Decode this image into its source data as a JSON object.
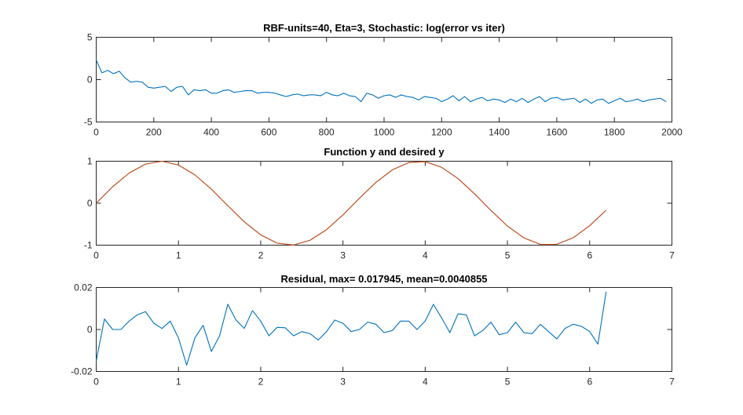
{
  "colors": {
    "blue": "#0072BD",
    "orange": "#D95319",
    "axis": "#262626",
    "background": "#ffffff"
  },
  "chart_data": [
    {
      "type": "line",
      "title": "RBF-units=40, Eta=3, Stochastic: log(error vs iter)",
      "xlabel": "",
      "ylabel": "",
      "xlim": [
        0,
        2000
      ],
      "ylim": [
        -5,
        5
      ],
      "xticks": [
        0,
        200,
        400,
        600,
        800,
        1000,
        1200,
        1400,
        1600,
        1800,
        2000
      ],
      "yticks": [
        -5,
        0,
        5
      ],
      "series": [
        {
          "color": "#0072BD",
          "x": [
            0,
            20,
            40,
            60,
            80,
            100,
            120,
            140,
            160,
            180,
            200,
            220,
            240,
            260,
            280,
            300,
            320,
            340,
            360,
            380,
            400,
            420,
            440,
            460,
            480,
            500,
            520,
            540,
            560,
            580,
            600,
            620,
            640,
            660,
            680,
            700,
            720,
            740,
            760,
            780,
            800,
            820,
            840,
            860,
            880,
            900,
            920,
            940,
            960,
            980,
            1000,
            1020,
            1040,
            1060,
            1080,
            1100,
            1120,
            1140,
            1160,
            1180,
            1200,
            1220,
            1240,
            1260,
            1280,
            1300,
            1320,
            1340,
            1360,
            1380,
            1400,
            1420,
            1440,
            1460,
            1480,
            1500,
            1520,
            1540,
            1560,
            1580,
            1600,
            1620,
            1640,
            1660,
            1680,
            1700,
            1720,
            1740,
            1760,
            1780,
            1800,
            1820,
            1840,
            1860,
            1880,
            1900,
            1920,
            1940,
            1960,
            1980
          ],
          "y": [
            2.3,
            0.8,
            1.1,
            0.7,
            1.0,
            0.2,
            -0.3,
            -0.2,
            -0.3,
            -0.9,
            -1.0,
            -0.9,
            -0.8,
            -1.4,
            -0.9,
            -0.8,
            -1.8,
            -1.2,
            -1.3,
            -1.2,
            -1.6,
            -1.6,
            -1.3,
            -1.2,
            -1.5,
            -1.4,
            -1.3,
            -1.3,
            -1.6,
            -1.5,
            -1.5,
            -1.6,
            -1.8,
            -2.0,
            -1.8,
            -1.7,
            -1.9,
            -1.8,
            -1.8,
            -1.9,
            -1.5,
            -1.8,
            -1.9,
            -1.6,
            -1.9,
            -2.0,
            -2.6,
            -1.6,
            -1.8,
            -2.2,
            -1.9,
            -1.8,
            -2.1,
            -1.8,
            -2.0,
            -2.1,
            -2.4,
            -2.0,
            -2.1,
            -2.2,
            -2.6,
            -2.3,
            -1.9,
            -2.5,
            -2.0,
            -2.6,
            -2.3,
            -2.1,
            -2.5,
            -2.3,
            -2.4,
            -2.7,
            -2.3,
            -2.6,
            -2.2,
            -2.7,
            -2.3,
            -2.0,
            -2.6,
            -2.2,
            -2.1,
            -2.4,
            -2.3,
            -2.2,
            -2.7,
            -2.3,
            -2.8,
            -2.4,
            -2.3,
            -2.8,
            -2.5,
            -2.2,
            -2.6,
            -2.5,
            -2.3,
            -2.6,
            -2.4,
            -2.3,
            -2.2,
            -2.6
          ]
        }
      ]
    },
    {
      "type": "line",
      "title": "Function y and desired y",
      "xlabel": "",
      "ylabel": "",
      "xlim": [
        0,
        7
      ],
      "ylim": [
        -1,
        1
      ],
      "xticks": [
        0,
        1,
        2,
        3,
        4,
        5,
        6,
        7
      ],
      "yticks": [
        -1,
        0,
        1
      ],
      "series": [
        {
          "color": "#0072BD",
          "x": [
            0,
            0.2,
            0.4,
            0.6,
            0.8,
            1.0,
            1.2,
            1.4,
            1.6,
            1.8,
            2.0,
            2.2,
            2.4,
            2.6,
            2.8,
            3.0,
            3.2,
            3.4,
            3.6,
            3.8,
            4.0,
            4.2,
            4.4,
            4.6,
            4.8,
            5.0,
            5.2,
            5.4,
            5.6,
            5.8,
            6.0,
            6.2
          ],
          "y": [
            0.0,
            0.3946,
            0.7174,
            0.932,
            0.9996,
            0.9093,
            0.6755,
            0.335,
            -0.0584,
            -0.4425,
            -0.7568,
            -0.9516,
            -0.9962,
            -0.8835,
            -0.6313,
            -0.2794,
            0.1165,
            0.4941,
            0.7937,
            0.9679,
            0.9894,
            0.8546,
            0.5849,
            0.2229,
            -0.1743,
            -0.544,
            -0.8278,
            -0.9817,
            -0.9792,
            -0.8228,
            -0.5366,
            -0.1665
          ]
        },
        {
          "color": "#D95319",
          "x": [
            0,
            0.2,
            0.4,
            0.6,
            0.8,
            1.0,
            1.2,
            1.4,
            1.6,
            1.8,
            2.0,
            2.2,
            2.4,
            2.6,
            2.8,
            3.0,
            3.2,
            3.4,
            3.6,
            3.8,
            4.0,
            4.2,
            4.4,
            4.6,
            4.8,
            5.0,
            5.2,
            5.4,
            5.6,
            5.8,
            6.0,
            6.2
          ],
          "y": [
            0.0,
            0.3894,
            0.7174,
            0.932,
            0.9996,
            0.9093,
            0.6755,
            0.335,
            -0.0584,
            -0.4425,
            -0.7568,
            -0.9516,
            -0.9962,
            -0.8835,
            -0.6313,
            -0.2794,
            0.1165,
            0.4941,
            0.7937,
            0.9679,
            0.9894,
            0.8546,
            0.5849,
            0.2229,
            -0.1743,
            -0.544,
            -0.8278,
            -0.9817,
            -0.9792,
            -0.8228,
            -0.5366,
            -0.1665
          ]
        }
      ]
    },
    {
      "type": "line",
      "title": "Residual, max= 0.017945, mean=0.0040855",
      "xlabel": "",
      "ylabel": "",
      "xlim": [
        0,
        7
      ],
      "ylim": [
        -0.02,
        0.02
      ],
      "xticks": [
        0,
        1,
        2,
        3,
        4,
        5,
        6,
        7
      ],
      "yticks": [
        -0.02,
        0,
        0.02
      ],
      "series": [
        {
          "color": "#0072BD",
          "x": [
            0,
            0.1,
            0.2,
            0.3,
            0.4,
            0.5,
            0.6,
            0.7,
            0.8,
            0.9,
            1.0,
            1.1,
            1.2,
            1.3,
            1.4,
            1.5,
            1.6,
            1.7,
            1.8,
            1.9,
            2.0,
            2.1,
            2.2,
            2.3,
            2.4,
            2.5,
            2.6,
            2.7,
            2.8,
            2.9,
            3.0,
            3.1,
            3.2,
            3.3,
            3.4,
            3.5,
            3.6,
            3.7,
            3.8,
            3.9,
            4.0,
            4.1,
            4.2,
            4.3,
            4.4,
            4.5,
            4.6,
            4.7,
            4.8,
            4.9,
            5.0,
            5.1,
            5.2,
            5.3,
            5.4,
            5.5,
            5.6,
            5.7,
            5.8,
            5.9,
            6.0,
            6.1,
            6.2
          ],
          "y": [
            -0.015,
            0.005,
            0.0,
            0.0,
            0.004,
            0.007,
            0.0085,
            0.003,
            0.0005,
            0.004,
            -0.004,
            -0.017,
            -0.004,
            0.002,
            -0.0105,
            -0.003,
            0.012,
            0.0045,
            0.0005,
            0.009,
            0.004,
            -0.003,
            0.001,
            0.0008,
            -0.003,
            -0.001,
            -0.002,
            -0.005,
            -0.001,
            0.0045,
            0.003,
            -0.001,
            0.0,
            0.0035,
            0.0025,
            -0.0015,
            -0.0005,
            0.004,
            0.004,
            0.0,
            0.004,
            0.012,
            0.0055,
            -0.0015,
            0.0075,
            0.007,
            -0.003,
            -0.0005,
            0.0035,
            -0.0025,
            -0.0015,
            0.0035,
            -0.0015,
            -0.002,
            0.0025,
            -0.001,
            -0.0045,
            0.0005,
            0.0025,
            0.0015,
            -0.001,
            -0.007,
            0.018
          ]
        }
      ]
    }
  ]
}
